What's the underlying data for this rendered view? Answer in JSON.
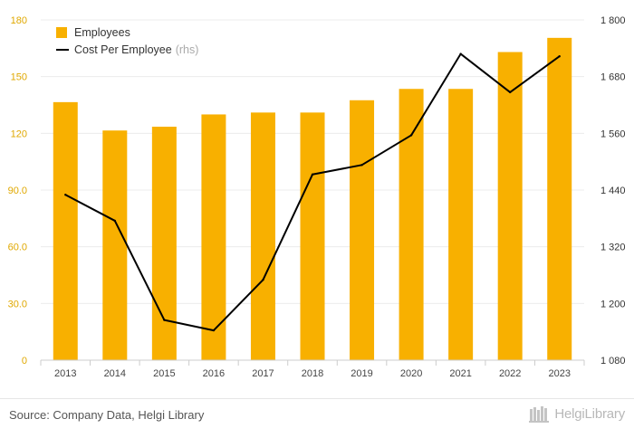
{
  "chart_data": {
    "type": "bar",
    "categories": [
      "2013",
      "2014",
      "2015",
      "2016",
      "2017",
      "2018",
      "2019",
      "2020",
      "2021",
      "2022",
      "2023"
    ],
    "series": [
      {
        "name": "Employees",
        "type": "bar",
        "axis": "left",
        "values": [
          136.5,
          121.5,
          123.5,
          130.0,
          131.0,
          131.0,
          137.5,
          143.5,
          143.5,
          163.0,
          170.5
        ]
      },
      {
        "name": "Cost Per Employee",
        "type": "line",
        "axis": "right",
        "values": [
          1430,
          1375,
          1165,
          1143,
          1250,
          1473,
          1493,
          1556,
          1728,
          1647,
          1723
        ]
      }
    ],
    "y_left": {
      "ticks": [
        "0",
        "30.0",
        "60.0",
        "90.0",
        "120",
        "150",
        "180"
      ],
      "range": [
        0,
        180
      ]
    },
    "y_right": {
      "ticks": [
        "1 080",
        "1 200",
        "1 320",
        "1 440",
        "1 560",
        "1 680",
        "1 800"
      ],
      "range": [
        1080,
        1800
      ]
    },
    "legend_placement": "top-left",
    "grid": true
  },
  "legend": {
    "bar_label": "Employees",
    "line_label": "Cost Per Employee",
    "line_note": "(rhs)"
  },
  "footer": {
    "source": "Source: Company Data, Helgi Library",
    "brand": "HelgiLibrary"
  },
  "colors": {
    "bar": "#f8b000",
    "line": "#000000",
    "left_axis_text": "#e0a800",
    "right_axis_text": "#333333",
    "grid": "#ececec"
  },
  "icons": {
    "brand_icon": "library-books-icon"
  }
}
